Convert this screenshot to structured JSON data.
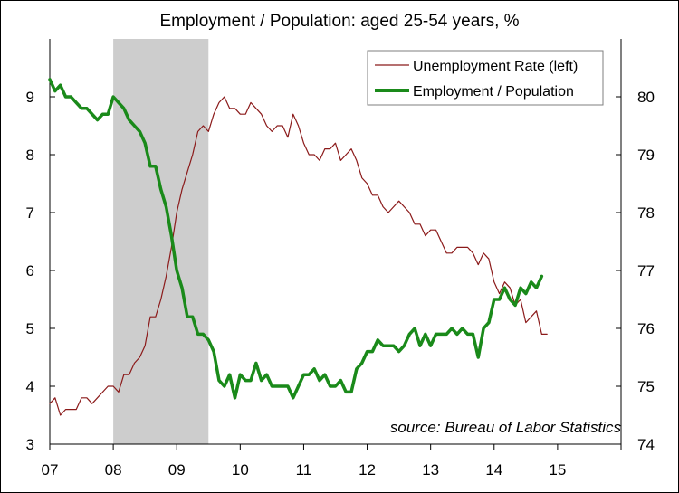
{
  "chart_data": {
    "type": "line",
    "title": "Employment / Population: aged 25-54 years, %",
    "source_note": "source: Bureau of Labor Statistics",
    "xlabel": "",
    "x_tick_labels": [
      "07",
      "08",
      "09",
      "10",
      "11",
      "12",
      "13",
      "14",
      "15"
    ],
    "x_range": [
      2007,
      2016
    ],
    "y_left": {
      "ylim": [
        3,
        10
      ],
      "ticks": [
        3,
        4,
        5,
        6,
        7,
        8,
        9
      ],
      "label": ""
    },
    "y_right": {
      "ylim": [
        74,
        81
      ],
      "ticks": [
        74,
        75,
        76,
        77,
        78,
        79,
        80
      ],
      "label": ""
    },
    "recession_band": {
      "start": 2008.0,
      "end": 2009.5
    },
    "legend": {
      "placement": "top-right"
    },
    "grid": false,
    "series": [
      {
        "name": "Unemployment Rate (left)",
        "axis": "left",
        "color": "#8b1a1a",
        "x_start": 2007.0,
        "step_months": 1,
        "values": [
          3.7,
          3.8,
          3.5,
          3.6,
          3.6,
          3.6,
          3.8,
          3.8,
          3.7,
          3.8,
          3.9,
          4.0,
          4.0,
          3.9,
          4.2,
          4.2,
          4.4,
          4.5,
          4.7,
          5.2,
          5.2,
          5.5,
          5.9,
          6.4,
          7.0,
          7.4,
          7.7,
          8.0,
          8.4,
          8.5,
          8.4,
          8.7,
          8.9,
          9.0,
          8.8,
          8.8,
          8.7,
          8.7,
          8.9,
          8.8,
          8.7,
          8.5,
          8.4,
          8.5,
          8.5,
          8.3,
          8.7,
          8.5,
          8.2,
          8.0,
          8.0,
          7.9,
          8.1,
          8.1,
          8.2,
          7.9,
          8.0,
          8.1,
          7.9,
          7.6,
          7.5,
          7.3,
          7.3,
          7.1,
          7.0,
          7.1,
          7.2,
          7.1,
          7.0,
          6.8,
          6.8,
          6.6,
          6.7,
          6.7,
          6.5,
          6.3,
          6.3,
          6.4,
          6.4,
          6.4,
          6.3,
          6.1,
          6.3,
          6.2,
          5.8,
          5.6,
          5.8,
          5.7,
          5.4,
          5.5,
          5.1,
          5.2,
          5.3,
          4.9,
          4.9
        ]
      },
      {
        "name": "Employment / Population",
        "axis": "right",
        "color": "#1a8a1a",
        "x_start": 2007.0,
        "step_months": 1,
        "values": [
          80.3,
          80.1,
          80.2,
          80.0,
          80.0,
          79.9,
          79.8,
          79.8,
          79.7,
          79.6,
          79.7,
          79.7,
          80.0,
          79.9,
          79.8,
          79.6,
          79.5,
          79.4,
          79.2,
          78.8,
          78.8,
          78.4,
          78.1,
          77.6,
          77.0,
          76.7,
          76.2,
          76.2,
          75.9,
          75.9,
          75.8,
          75.6,
          75.1,
          75.0,
          75.2,
          74.8,
          75.2,
          75.1,
          75.1,
          75.4,
          75.1,
          75.2,
          75.0,
          75.0,
          75.0,
          75.0,
          74.8,
          75.0,
          75.2,
          75.2,
          75.3,
          75.1,
          75.2,
          75.0,
          75.0,
          75.1,
          74.9,
          74.9,
          75.3,
          75.4,
          75.6,
          75.6,
          75.8,
          75.7,
          75.7,
          75.7,
          75.6,
          75.7,
          75.9,
          76.0,
          75.7,
          75.9,
          75.7,
          75.9,
          75.9,
          75.9,
          76.0,
          75.9,
          76.0,
          75.9,
          75.9,
          75.5,
          76.0,
          76.1,
          76.5,
          76.5,
          76.7,
          76.5,
          76.4,
          76.7,
          76.6,
          76.8,
          76.7,
          76.9
        ]
      }
    ]
  }
}
